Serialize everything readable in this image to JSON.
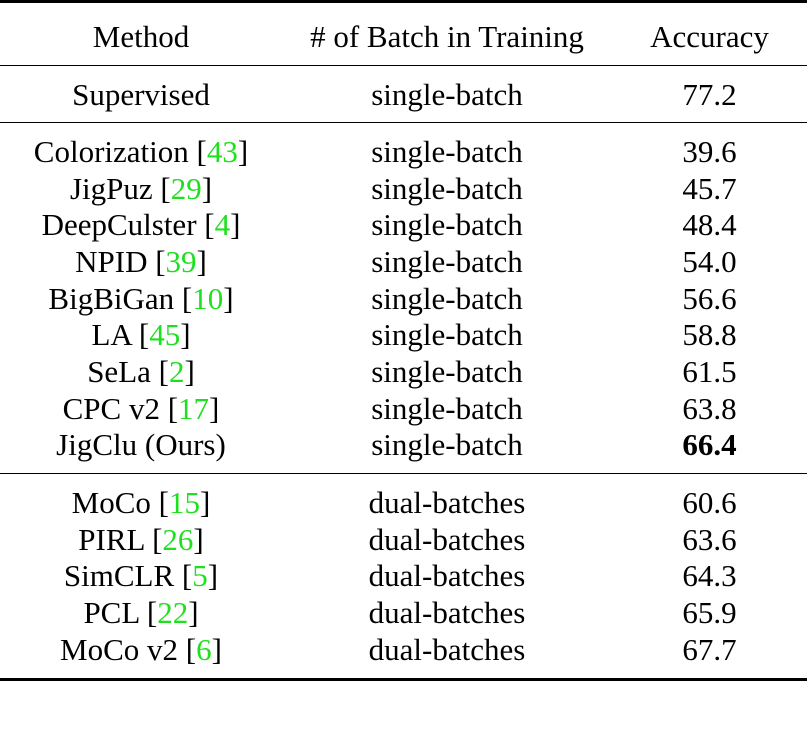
{
  "table": {
    "headers": {
      "method": "Method",
      "batch": "# of Batch in Training",
      "accuracy": "Accuracy"
    },
    "supervised": {
      "method": "Supervised",
      "batch": "single-batch",
      "accuracy": "77.2"
    },
    "single_batch_rows": [
      {
        "method": "Colorization",
        "cite": "43",
        "batch": "single-batch",
        "accuracy": "39.6"
      },
      {
        "method": "JigPuz",
        "cite": "29",
        "batch": "single-batch",
        "accuracy": "45.7"
      },
      {
        "method": "DeepCulster",
        "cite": "4",
        "batch": "single-batch",
        "accuracy": "48.4"
      },
      {
        "method": "NPID",
        "cite": "39",
        "batch": "single-batch",
        "accuracy": "54.0"
      },
      {
        "method": "BigBiGan",
        "cite": "10",
        "batch": "single-batch",
        "accuracy": "56.6"
      },
      {
        "method": "LA",
        "cite": "45",
        "batch": "single-batch",
        "accuracy": "58.8"
      },
      {
        "method": "SeLa",
        "cite": "2",
        "batch": "single-batch",
        "accuracy": "61.5"
      },
      {
        "method": "CPC v2",
        "cite": "17",
        "batch": "single-batch",
        "accuracy": "63.8"
      },
      {
        "method": "JigClu (Ours)",
        "batch": "single-batch",
        "accuracy": "66.4",
        "bold": true
      }
    ],
    "dual_batch_rows": [
      {
        "method": "MoCo",
        "cite": "15",
        "batch": "dual-batches",
        "accuracy": "60.6"
      },
      {
        "method": "PIRL",
        "cite": "26",
        "batch": "dual-batches",
        "accuracy": "63.6"
      },
      {
        "method": "SimCLR",
        "cite": "5",
        "batch": "dual-batches",
        "accuracy": "64.3"
      },
      {
        "method": "PCL",
        "cite": "22",
        "batch": "dual-batches",
        "accuracy": "65.9"
      },
      {
        "method": "MoCo v2",
        "cite": "6",
        "batch": "dual-batches",
        "accuracy": "67.7"
      }
    ],
    "colors": {
      "citation": "#1fe01f",
      "text": "#000000",
      "rules": "#000000"
    }
  }
}
